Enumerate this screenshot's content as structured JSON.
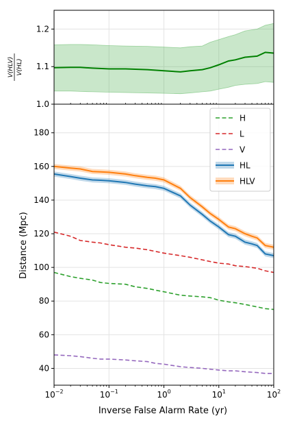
{
  "chart_data": [
    {
      "type": "line",
      "ylabel": "V(HLV)/V(HL)",
      "ylabel_num": "V(HLV)",
      "ylabel_den": "V(HL)",
      "xscale": "log",
      "xlim": [
        0.01,
        100
      ],
      "ylim": [
        1.0,
        1.25
      ],
      "yticks": [
        1.0,
        1.1,
        1.2
      ],
      "ytick_labels": [
        "1.0",
        "1.1",
        "1.2"
      ],
      "grid": true,
      "series": [
        {
          "color": "#008000",
          "band_color": "#4caf50",
          "x": [
            0.01,
            0.02,
            0.03,
            0.05,
            0.1,
            0.2,
            0.5,
            1,
            2,
            3,
            5,
            7,
            10,
            15,
            20,
            30,
            50,
            70,
            100
          ],
          "y": [
            1.097,
            1.098,
            1.098,
            1.096,
            1.094,
            1.094,
            1.092,
            1.089,
            1.086,
            1.089,
            1.092,
            1.097,
            1.105,
            1.115,
            1.118,
            1.125,
            1.128,
            1.138,
            1.136
          ],
          "lower": [
            1.035,
            1.035,
            1.034,
            1.033,
            1.032,
            1.031,
            1.03,
            1.029,
            1.028,
            1.03,
            1.033,
            1.035,
            1.04,
            1.045,
            1.05,
            1.053,
            1.055,
            1.06,
            1.058
          ],
          "upper": [
            1.158,
            1.159,
            1.159,
            1.158,
            1.156,
            1.155,
            1.154,
            1.152,
            1.15,
            1.153,
            1.155,
            1.165,
            1.172,
            1.18,
            1.185,
            1.195,
            1.2,
            1.21,
            1.215
          ]
        }
      ]
    },
    {
      "type": "line",
      "xlabel": "Inverse False Alarm Rate (yr)",
      "ylabel": "Distance (Mpc)",
      "xscale": "log",
      "xlim": [
        0.01,
        100
      ],
      "ylim": [
        30,
        197
      ],
      "xticks": [
        0.01,
        0.1,
        1,
        10,
        100
      ],
      "xtick_base": "10",
      "xtick_exps": [
        "−2",
        "−1",
        "0",
        "1",
        "2"
      ],
      "yticks": [
        40,
        60,
        80,
        100,
        120,
        140,
        160,
        180
      ],
      "ytick_labels": [
        "40",
        "60",
        "80",
        "100",
        "120",
        "140",
        "160",
        "180"
      ],
      "grid": true,
      "legend": "top-right",
      "series": [
        {
          "name": "H",
          "color": "#2ca02c",
          "style": "dashed",
          "x": [
            0.01,
            0.02,
            0.03,
            0.05,
            0.07,
            0.1,
            0.2,
            0.3,
            0.5,
            0.7,
            1,
            2,
            3,
            5,
            7,
            10,
            15,
            20,
            30,
            50,
            70,
            100
          ],
          "y": [
            97,
            94.5,
            93.5,
            92.5,
            91,
            90.5,
            90,
            88.5,
            87.5,
            86.5,
            85.5,
            83.5,
            83,
            82.5,
            82,
            80.5,
            79.5,
            79,
            78,
            76.5,
            75.5,
            75
          ]
        },
        {
          "name": "L",
          "color": "#d62728",
          "style": "dashed",
          "x": [
            0.01,
            0.02,
            0.03,
            0.05,
            0.07,
            0.1,
            0.2,
            0.3,
            0.5,
            0.7,
            1,
            2,
            3,
            5,
            7,
            10,
            15,
            20,
            30,
            50,
            70,
            100
          ],
          "y": [
            121,
            118.5,
            116,
            115,
            114.5,
            113.5,
            112,
            111.5,
            110.5,
            109.5,
            108.5,
            107,
            106,
            104.5,
            103.5,
            102.5,
            102,
            101,
            100.5,
            99.5,
            98,
            97
          ]
        },
        {
          "name": "V",
          "color": "#9467bd",
          "style": "dashed",
          "x": [
            0.01,
            0.02,
            0.03,
            0.05,
            0.07,
            0.1,
            0.2,
            0.3,
            0.5,
            0.7,
            1,
            2,
            3,
            5,
            7,
            10,
            15,
            20,
            30,
            50,
            70,
            100
          ],
          "y": [
            48,
            47.5,
            47,
            46,
            45.5,
            45.5,
            45,
            44.5,
            44,
            43,
            42.5,
            41,
            40.5,
            40,
            39.5,
            39,
            38.5,
            38.5,
            38,
            37.5,
            37,
            37
          ]
        },
        {
          "name": "HL",
          "color": "#1f77b4",
          "style": "solid",
          "band": 1.5,
          "x": [
            0.01,
            0.02,
            0.03,
            0.05,
            0.07,
            0.1,
            0.2,
            0.3,
            0.5,
            0.7,
            1,
            2,
            3,
            5,
            7,
            10,
            15,
            20,
            30,
            40,
            50,
            70,
            100
          ],
          "y": [
            155.5,
            154,
            153,
            152,
            151.8,
            151.5,
            150.5,
            149.5,
            148.5,
            148,
            147,
            142.5,
            137,
            131.5,
            127.5,
            124,
            119.5,
            118.5,
            115,
            114,
            113,
            108,
            107
          ]
        },
        {
          "name": "HLV",
          "color": "#ff7f0e",
          "style": "solid",
          "band": 1.5,
          "x": [
            0.01,
            0.02,
            0.03,
            0.05,
            0.07,
            0.1,
            0.2,
            0.3,
            0.5,
            0.7,
            1,
            2,
            3,
            5,
            7,
            10,
            15,
            20,
            30,
            40,
            50,
            70,
            100
          ],
          "y": [
            160,
            159,
            158.5,
            157,
            156.8,
            156.5,
            155.5,
            154.5,
            153.5,
            153,
            152,
            147,
            141.5,
            136,
            132,
            128.5,
            124,
            123,
            120,
            118.5,
            117.5,
            113,
            112
          ]
        }
      ]
    }
  ]
}
